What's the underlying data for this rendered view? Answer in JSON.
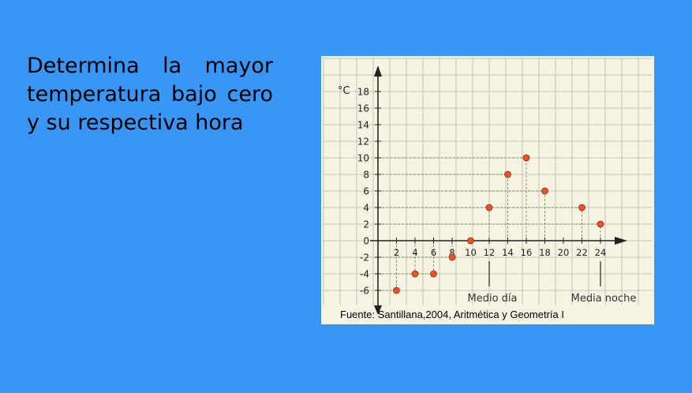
{
  "slide": {
    "question": "Determina la mayor temperatura bajo cero y su respectiva hora",
    "source": "Fuente: Santillana,2004, Aritmética y Geometría I"
  },
  "colors": {
    "background": "#3a96f5",
    "figure_paper": "#f7f3e3",
    "grid": "#b9b7ad",
    "point": "#e8542a"
  },
  "chart_data": {
    "type": "scatter",
    "ylabel": "°C",
    "xlabel": "",
    "xlim": [
      0,
      26
    ],
    "ylim": [
      -8,
      19
    ],
    "x_ticks": [
      2,
      4,
      6,
      8,
      10,
      12,
      14,
      16,
      18,
      20,
      22,
      24
    ],
    "y_ticks": [
      -6,
      -4,
      -2,
      0,
      2,
      4,
      6,
      8,
      10,
      12,
      14,
      16,
      18
    ],
    "grid": true,
    "points": [
      {
        "x": 2,
        "y": -6
      },
      {
        "x": 4,
        "y": -4
      },
      {
        "x": 6,
        "y": -4
      },
      {
        "x": 8,
        "y": -2
      },
      {
        "x": 10,
        "y": 0
      },
      {
        "x": 12,
        "y": 4
      },
      {
        "x": 14,
        "y": 8
      },
      {
        "x": 16,
        "y": 10
      },
      {
        "x": 18,
        "y": 6
      },
      {
        "x": 22,
        "y": 4
      },
      {
        "x": 24,
        "y": 2
      }
    ],
    "annotations": [
      {
        "text": "Medio día",
        "x": 12
      },
      {
        "text": "Media noche",
        "x": 24
      }
    ]
  }
}
